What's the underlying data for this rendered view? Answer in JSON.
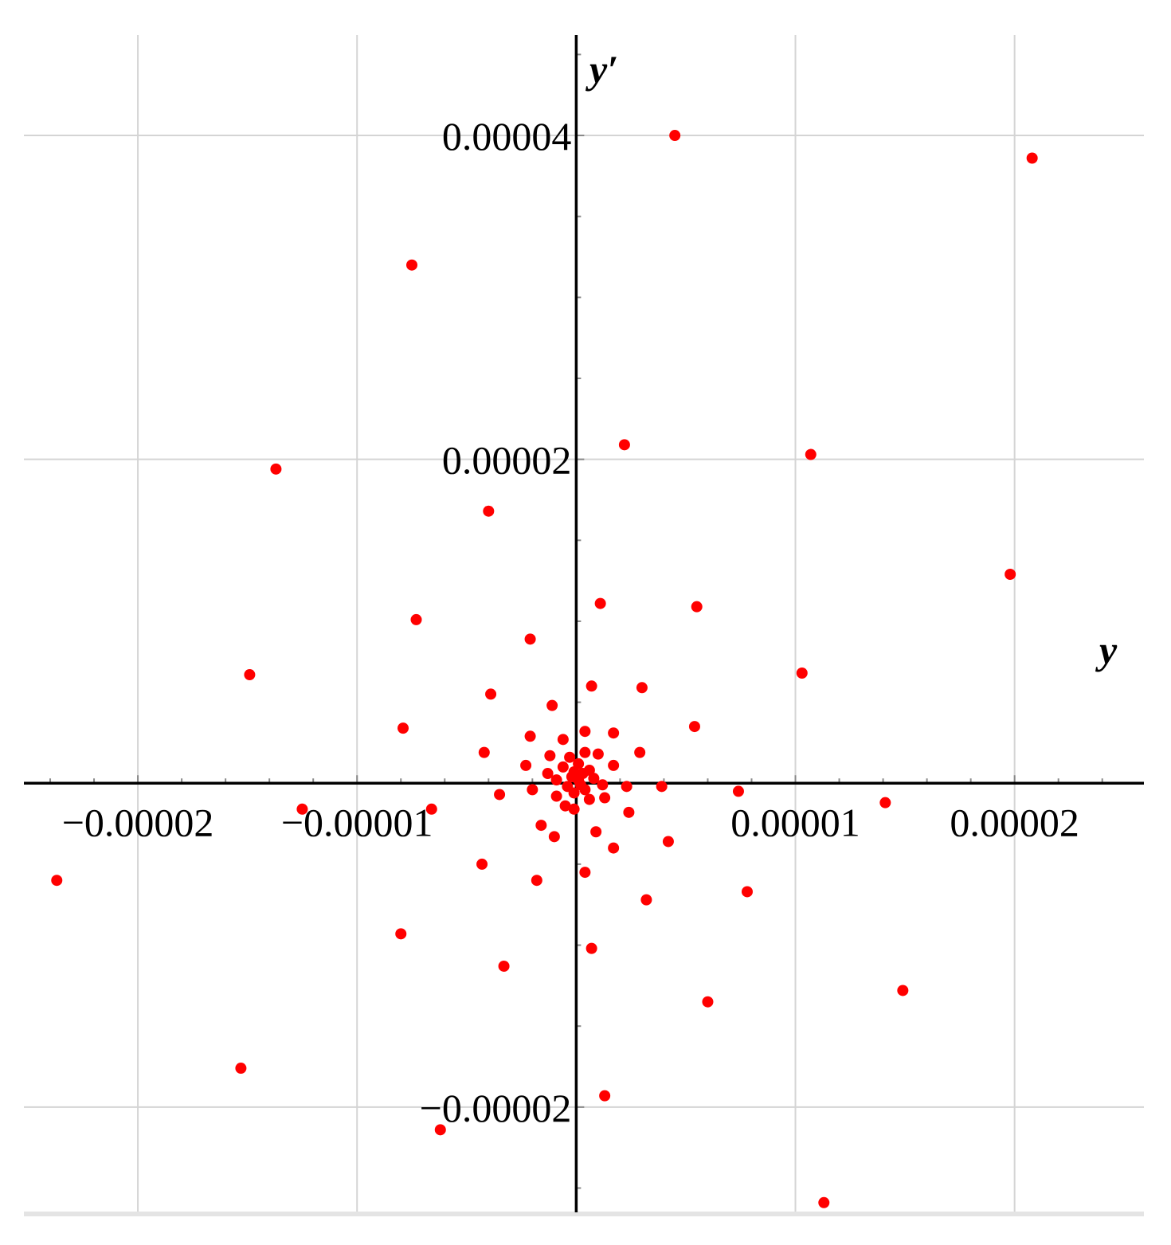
{
  "chart_data": {
    "type": "scatter",
    "title": "",
    "xlabel": "y",
    "ylabel": "y′",
    "xlim": [
      -2.52e-05,
      2.59e-05
    ],
    "ylim": [
      -2.65e-05,
      4.62e-05
    ],
    "grid": true,
    "point_color": "#ff0000",
    "x_ticks": [
      {
        "value": -2e-05,
        "label": "−0.00002"
      },
      {
        "value": -1e-05,
        "label": "−0.00001"
      },
      {
        "value": 1e-05,
        "label": "0.00001"
      },
      {
        "value": 2e-05,
        "label": "0.00002"
      }
    ],
    "y_ticks": [
      {
        "value": 4e-05,
        "label": "0.00004"
      },
      {
        "value": 2e-05,
        "label": "0.00002"
      },
      {
        "value": -2e-05,
        "label": "−0.00002"
      }
    ],
    "points": [
      [
        4.5e-06,
        4e-05
      ],
      [
        2.08e-05,
        3.86e-05
      ],
      [
        -7.5e-06,
        3.2e-05
      ],
      [
        2.2e-06,
        2.09e-05
      ],
      [
        1.07e-05,
        2.03e-05
      ],
      [
        -1.37e-05,
        1.94e-05
      ],
      [
        -4e-06,
        1.68e-05
      ],
      [
        1.98e-05,
        1.29e-05
      ],
      [
        5.5e-06,
        1.09e-05
      ],
      [
        1.1e-06,
        1.11e-05
      ],
      [
        -7.3e-06,
        1.01e-05
      ],
      [
        -2.1e-06,
        8.9e-06
      ],
      [
        -1.49e-05,
        6.7e-06
      ],
      [
        1.03e-05,
        6.8e-06
      ],
      [
        7e-07,
        6e-06
      ],
      [
        3e-06,
        5.9e-06
      ],
      [
        -3.9e-06,
        5.5e-06
      ],
      [
        -1.1e-06,
        4.8e-06
      ],
      [
        -7.9e-06,
        3.4e-06
      ],
      [
        5.4e-06,
        3.5e-06
      ],
      [
        -2.1e-06,
        2.9e-06
      ],
      [
        4e-07,
        3.2e-06
      ],
      [
        1.7e-06,
        3.1e-06
      ],
      [
        -6e-07,
        2.7e-06
      ],
      [
        -4.2e-06,
        1.9e-06
      ],
      [
        2.9e-06,
        1.9e-06
      ],
      [
        -1.2e-06,
        1.7e-06
      ],
      [
        1e-06,
        1.8e-06
      ],
      [
        -2.3e-06,
        1.1e-06
      ],
      [
        1.7e-06,
        1.1e-06
      ],
      [
        4e-07,
        1.9e-06
      ],
      [
        -3e-07,
        1.6e-06
      ],
      [
        1e-07,
        1.2e-06
      ],
      [
        -1.3e-06,
        6e-07
      ],
      [
        6e-07,
        8e-07
      ],
      [
        -6e-07,
        1e-06
      ],
      [
        3e-07,
        6e-07
      ],
      [
        -2e-07,
        4e-07
      ],
      [
        1e-07,
        2e-07
      ],
      [
        -1e-07,
        7e-07
      ],
      [
        8e-07,
        3e-07
      ],
      [
        -9e-07,
        2e-07
      ],
      [
        2e-07,
        -1e-07
      ],
      [
        -4e-07,
        -2e-07
      ],
      [
        4e-07,
        -4e-07
      ],
      [
        -1e-07,
        -6e-07
      ],
      [
        1.2e-06,
        -1e-07
      ],
      [
        -9e-07,
        -8e-07
      ],
      [
        2.3e-06,
        -2e-07
      ],
      [
        -2e-06,
        -4e-07
      ],
      [
        6e-07,
        -1e-06
      ],
      [
        -5e-07,
        -1.4e-06
      ],
      [
        1.3e-06,
        -9e-07
      ],
      [
        -1e-07,
        -1.6e-06
      ],
      [
        3.9e-06,
        -2e-07
      ],
      [
        7.4e-06,
        -5e-07
      ],
      [
        -3.5e-06,
        -7e-07
      ],
      [
        -6.6e-06,
        -1.6e-06
      ],
      [
        2.4e-06,
        -1.8e-06
      ],
      [
        -1.6e-06,
        -2.6e-06
      ],
      [
        9e-07,
        -3e-06
      ],
      [
        -1e-06,
        -3.3e-06
      ],
      [
        1.41e-05,
        -1.2e-06
      ],
      [
        -1.25e-05,
        -1.6e-06
      ],
      [
        4.2e-06,
        -3.6e-06
      ],
      [
        1.7e-06,
        -4e-06
      ],
      [
        -4.3e-06,
        -5e-06
      ],
      [
        4e-07,
        -5.5e-06
      ],
      [
        -1.8e-06,
        -6e-06
      ],
      [
        -2.37e-05,
        -6e-06
      ],
      [
        3.2e-06,
        -7.2e-06
      ],
      [
        7.8e-06,
        -6.7e-06
      ],
      [
        -8e-06,
        -9.3e-06
      ],
      [
        7e-07,
        -1.02e-05
      ],
      [
        -3.3e-06,
        -1.13e-05
      ],
      [
        1.49e-05,
        -1.28e-05
      ],
      [
        6e-06,
        -1.35e-05
      ],
      [
        -1.53e-05,
        -1.76e-05
      ],
      [
        1.3e-06,
        -1.93e-05
      ],
      [
        -6.2e-06,
        -2.14e-05
      ],
      [
        1.13e-05,
        -2.59e-05
      ]
    ]
  }
}
